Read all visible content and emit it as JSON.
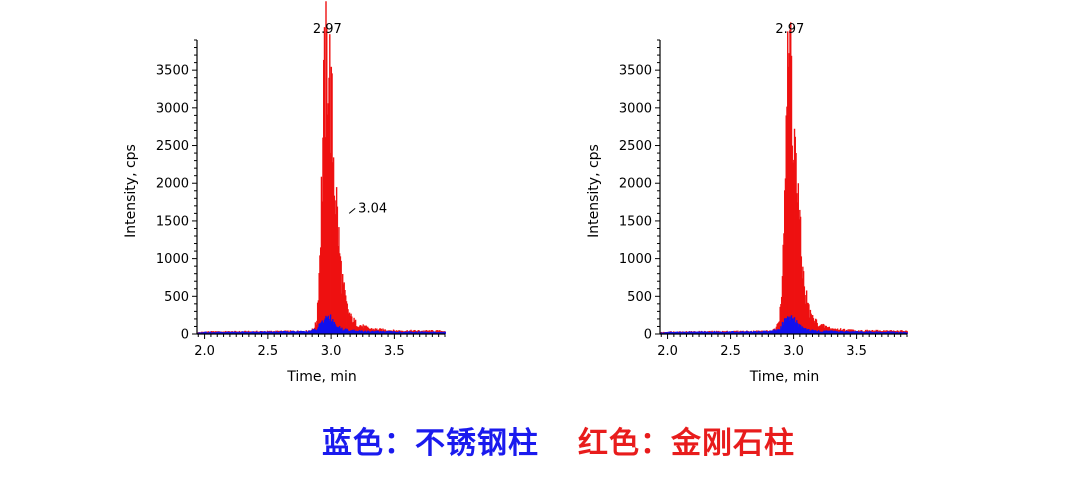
{
  "chart_data": [
    {
      "type": "bar",
      "xlabel": "Time, min",
      "ylabel": "Intensity, cps",
      "xlim": [
        1.94,
        3.9
      ],
      "ylim": [
        0,
        3900
      ],
      "xticks": [
        "2.0",
        "2.5",
        "3.0",
        "3.5"
      ],
      "yticks": [
        "0",
        "500",
        "1000",
        "1500",
        "2000",
        "2500",
        "3000",
        "3500"
      ],
      "peak_annotations": [
        {
          "label": "2.97",
          "x": 2.97,
          "y": 3880
        },
        {
          "label": "3.04",
          "x": 3.04,
          "y": 1600
        }
      ],
      "series": [
        {
          "color": "#ee1111",
          "x": [
            1.94,
            2.0,
            2.5,
            2.8,
            2.85,
            2.88,
            2.9,
            2.92,
            2.94,
            2.96,
            2.97,
            2.98,
            3.0,
            3.02,
            3.04,
            3.06,
            3.08,
            3.1,
            3.12,
            3.15,
            3.2,
            3.3,
            3.5,
            3.9
          ],
          "values": [
            20,
            30,
            35,
            40,
            60,
            150,
            800,
            1900,
            3200,
            3550,
            3880,
            3500,
            2800,
            2200,
            1650,
            1100,
            750,
            520,
            350,
            220,
            130,
            70,
            45,
            40
          ]
        },
        {
          "color": "#1111ee",
          "x": [
            1.94,
            2.0,
            2.5,
            2.8,
            2.88,
            2.92,
            2.96,
            2.98,
            3.0,
            3.02,
            3.05,
            3.1,
            3.2,
            3.5,
            3.9
          ],
          "values": [
            15,
            25,
            30,
            35,
            60,
            150,
            220,
            250,
            200,
            140,
            90,
            60,
            40,
            30,
            25
          ]
        }
      ]
    },
    {
      "type": "bar",
      "xlabel": "Time, min",
      "ylabel": "Intensity, cps",
      "xlim": [
        1.94,
        3.9
      ],
      "ylim": [
        0,
        3900
      ],
      "xticks": [
        "2.0",
        "2.5",
        "3.0",
        "3.5"
      ],
      "yticks": [
        "0",
        "500",
        "1000",
        "1500",
        "2000",
        "2500",
        "3000",
        "3500"
      ],
      "peak_annotations": [
        {
          "label": "2.97",
          "x": 2.97,
          "y": 3880
        }
      ],
      "series": [
        {
          "color": "#ee1111",
          "x": [
            1.94,
            2.0,
            2.5,
            2.8,
            2.85,
            2.88,
            2.9,
            2.92,
            2.94,
            2.96,
            2.97,
            2.98,
            3.0,
            3.02,
            3.04,
            3.06,
            3.08,
            3.1,
            3.12,
            3.15,
            3.2,
            3.3,
            3.5,
            3.9
          ],
          "values": [
            20,
            30,
            35,
            40,
            60,
            150,
            700,
            1800,
            3000,
            3500,
            3880,
            3350,
            2600,
            2000,
            1450,
            950,
            650,
            450,
            300,
            200,
            120,
            70,
            45,
            40
          ]
        },
        {
          "color": "#1111ee",
          "x": [
            1.94,
            2.0,
            2.5,
            2.8,
            2.88,
            2.92,
            2.96,
            2.98,
            3.0,
            3.02,
            3.05,
            3.1,
            3.2,
            3.5,
            3.9
          ],
          "values": [
            15,
            25,
            30,
            35,
            60,
            160,
            230,
            260,
            210,
            150,
            95,
            60,
            40,
            30,
            25
          ]
        }
      ]
    }
  ],
  "legend": {
    "blue_text": "蓝色：不锈钢柱",
    "red_text": "红色：金刚石柱",
    "blue_color": "#1a1aee",
    "red_color": "#e81c1c"
  }
}
